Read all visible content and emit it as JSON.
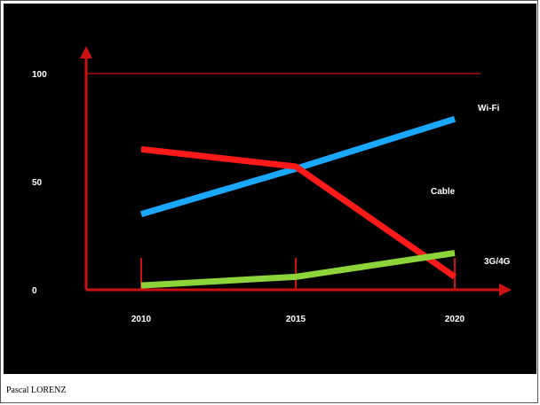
{
  "chart_data": {
    "type": "line",
    "x": [
      "2010",
      "2015",
      "2020"
    ],
    "y_ticks": [
      "0",
      "50",
      "100"
    ],
    "ylim": [
      0,
      100
    ],
    "reference_line": 100,
    "series": [
      {
        "name": "Wi-Fi",
        "color": "#1aa8ff",
        "values": [
          35,
          56,
          79
        ]
      },
      {
        "name": "Cable",
        "color": "#ff1a1a",
        "values": [
          65,
          57,
          6
        ]
      },
      {
        "name": "3G/4G",
        "color": "#8cd43a",
        "values": [
          2,
          6,
          17
        ]
      }
    ],
    "axis_color": "#cc1111",
    "grid": false
  },
  "footer": {
    "author": "Pascal LORENZ"
  }
}
